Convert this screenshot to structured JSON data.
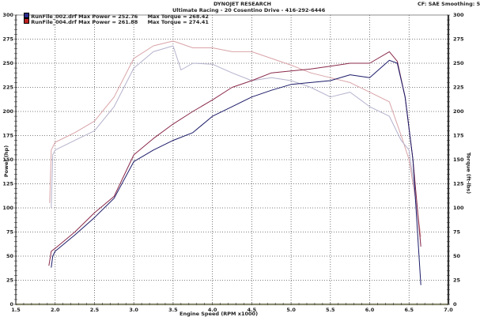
{
  "header": {
    "title": "DYNOJET RESEARCH",
    "subtitle": "Ultimate Racing - 20 Cosentino Drive - 416-292-6446",
    "settings": "CF: SAE  Smoothing: 5"
  },
  "legend": [
    {
      "file": "RunFile_002.drf",
      "max_power_label": "Max Power = 252.76",
      "max_torque_label": "Max Torque = 268.42",
      "color": "#2a2a8a"
    },
    {
      "file": "RunFile_004.drf",
      "max_power_label": "Max Power = 261.88",
      "max_torque_label": "Max Torque = 274.41",
      "color": "#c02020"
    }
  ],
  "chart_data": {
    "type": "line",
    "title": "DYNOJET RESEARCH",
    "xlabel": "Engine Speed (RPM x1000)",
    "ylabel": "Power (hp)",
    "ylabel_right": "Torque (ft-lbs)",
    "xlim": [
      1.5,
      7.0
    ],
    "ylim": [
      0,
      300
    ],
    "xticks": [
      "1.5",
      "2.0",
      "2.5",
      "3.0",
      "3.5",
      "4.0",
      "4.5",
      "5.0",
      "5.5",
      "6.0",
      "6.5",
      "7.0"
    ],
    "yticks": [
      "0",
      "25",
      "50",
      "75",
      "100",
      "125",
      "150",
      "175",
      "200",
      "225",
      "250",
      "275",
      "300"
    ],
    "grid": true,
    "legend_position": "top-left",
    "series": [
      {
        "name": "RunFile_004.drf Torque",
        "color": "#d9a3a8",
        "x": [
          1.93,
          1.95,
          2.0,
          2.25,
          2.5,
          2.75,
          3.0,
          3.25,
          3.5,
          3.75,
          4.0,
          4.25,
          4.5,
          4.75,
          5.0,
          5.25,
          5.5,
          5.75,
          6.0,
          6.25,
          6.4,
          6.5,
          6.6,
          6.65
        ],
        "values": [
          105,
          160,
          168,
          178,
          190,
          215,
          255,
          268,
          273,
          266,
          266,
          262,
          262,
          255,
          248,
          240,
          235,
          230,
          220,
          210,
          175,
          150,
          100,
          70
        ]
      },
      {
        "name": "RunFile_002.drf Torque",
        "color": "#b4b2cc",
        "x": [
          1.95,
          1.97,
          2.0,
          2.25,
          2.5,
          2.75,
          3.0,
          3.25,
          3.5,
          3.6,
          3.75,
          4.0,
          4.25,
          4.5,
          4.75,
          5.0,
          5.25,
          5.5,
          5.75,
          6.0,
          6.25,
          6.4,
          6.5,
          6.6,
          6.65
        ],
        "values": [
          100,
          155,
          160,
          170,
          180,
          205,
          245,
          262,
          268,
          243,
          250,
          249,
          240,
          232,
          235,
          232,
          225,
          215,
          220,
          205,
          195,
          170,
          160,
          100,
          60
        ]
      },
      {
        "name": "RunFile_004.drf Power",
        "color": "#8a2a4a",
        "x": [
          1.92,
          1.95,
          2.0,
          2.25,
          2.5,
          2.75,
          3.0,
          3.25,
          3.5,
          3.75,
          4.0,
          4.25,
          4.5,
          4.75,
          5.0,
          5.25,
          5.5,
          5.75,
          6.0,
          6.25,
          6.35,
          6.45,
          6.55,
          6.65
        ],
        "values": [
          40,
          55,
          58,
          75,
          95,
          112,
          155,
          172,
          187,
          200,
          212,
          225,
          232,
          240,
          242,
          244,
          247,
          250,
          250,
          262,
          252,
          215,
          150,
          60
        ]
      },
      {
        "name": "RunFile_002.drf Power",
        "color": "#1c1c6a",
        "x": [
          1.95,
          1.97,
          2.0,
          2.25,
          2.5,
          2.75,
          3.0,
          3.25,
          3.5,
          3.75,
          4.0,
          4.25,
          4.5,
          4.75,
          5.0,
          5.25,
          5.5,
          5.75,
          6.0,
          6.25,
          6.35,
          6.45,
          6.55,
          6.65
        ],
        "values": [
          38,
          50,
          55,
          72,
          90,
          110,
          148,
          160,
          170,
          178,
          195,
          205,
          215,
          222,
          228,
          230,
          232,
          238,
          235,
          253,
          250,
          215,
          150,
          20
        ]
      }
    ]
  }
}
